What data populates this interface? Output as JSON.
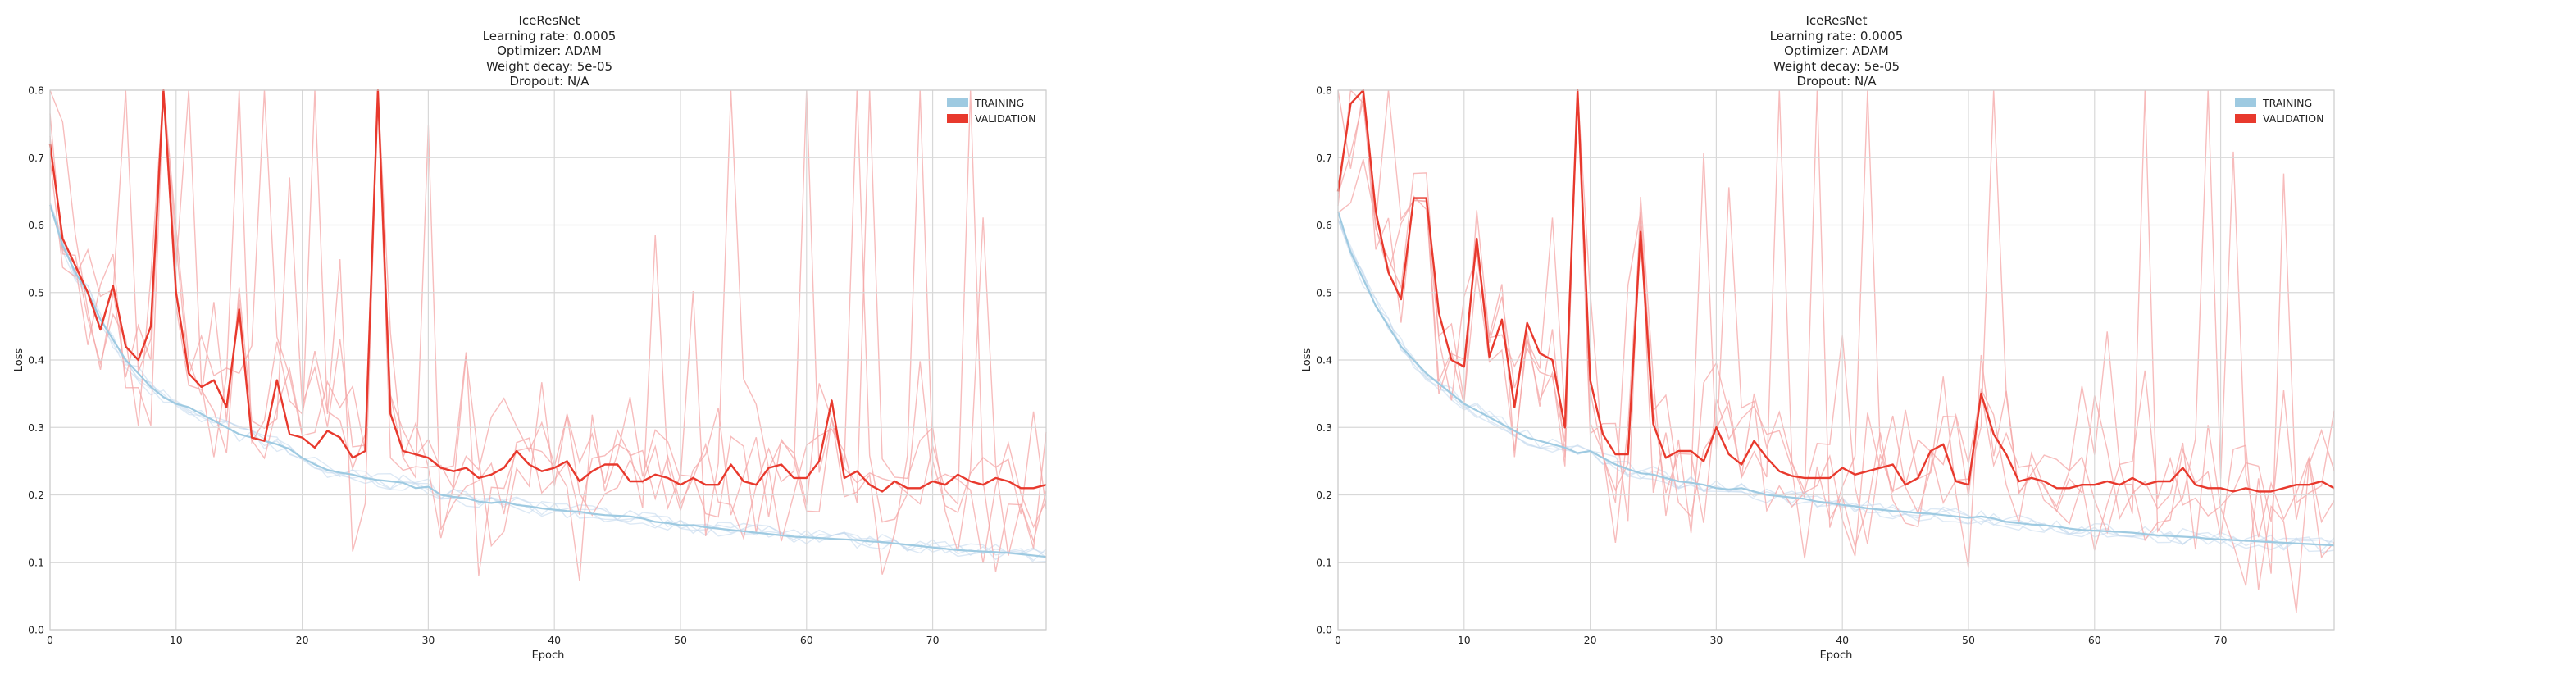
{
  "chart_data": [
    {
      "type": "line",
      "title_lines": [
        "IceResNet",
        "Learning rate: 0.0005",
        "Optimizer: ADAM",
        "Weight decay: 5e-05",
        "Dropout: N/A"
      ],
      "xlabel": "Epoch",
      "ylabel": "Loss",
      "xlim": [
        0,
        79
      ],
      "ylim": [
        0.0,
        0.8
      ],
      "xticks": [
        0,
        10,
        20,
        30,
        40,
        50,
        60,
        70
      ],
      "yticks": [
        0.0,
        0.1,
        0.2,
        0.3,
        0.4,
        0.5,
        0.6,
        0.7,
        0.8
      ],
      "grid": true,
      "legend_position": "top-right",
      "legend": [
        "TRAINING",
        "VALIDATION"
      ],
      "colors": {
        "training": "#9ecae1",
        "training_faint": "#c6dbef",
        "validation": "#e8392d",
        "validation_faint": "#f4a6a6"
      },
      "series": [
        {
          "name": "TRAINING",
          "x": [
            0,
            1,
            2,
            3,
            4,
            5,
            6,
            7,
            8,
            9,
            10,
            11,
            12,
            13,
            14,
            15,
            16,
            17,
            18,
            19,
            20,
            21,
            22,
            23,
            24,
            25,
            26,
            27,
            28,
            29,
            30,
            31,
            32,
            33,
            34,
            35,
            36,
            37,
            38,
            39,
            40,
            41,
            42,
            43,
            44,
            45,
            46,
            47,
            48,
            49,
            50,
            51,
            52,
            53,
            54,
            55,
            56,
            57,
            58,
            59,
            60,
            61,
            62,
            63,
            64,
            65,
            66,
            67,
            68,
            69,
            70,
            71,
            72,
            73,
            74,
            75,
            76,
            77,
            78,
            79
          ],
          "values": [
            0.63,
            0.57,
            0.53,
            0.5,
            0.46,
            0.43,
            0.4,
            0.38,
            0.36,
            0.345,
            0.335,
            0.33,
            0.32,
            0.31,
            0.3,
            0.29,
            0.285,
            0.28,
            0.275,
            0.268,
            0.255,
            0.245,
            0.237,
            0.233,
            0.23,
            0.225,
            0.222,
            0.22,
            0.218,
            0.21,
            0.212,
            0.2,
            0.197,
            0.195,
            0.19,
            0.188,
            0.19,
            0.185,
            0.183,
            0.18,
            0.178,
            0.176,
            0.175,
            0.172,
            0.17,
            0.169,
            0.168,
            0.165,
            0.16,
            0.158,
            0.155,
            0.155,
            0.152,
            0.15,
            0.148,
            0.146,
            0.144,
            0.142,
            0.14,
            0.138,
            0.137,
            0.136,
            0.135,
            0.134,
            0.133,
            0.131,
            0.13,
            0.128,
            0.126,
            0.124,
            0.122,
            0.12,
            0.118,
            0.117,
            0.116,
            0.115,
            0.114,
            0.112,
            0.11,
            0.108
          ]
        },
        {
          "name": "VALIDATION",
          "x": [
            0,
            1,
            2,
            3,
            4,
            5,
            6,
            7,
            8,
            9,
            10,
            11,
            12,
            13,
            14,
            15,
            16,
            17,
            18,
            19,
            20,
            21,
            22,
            23,
            24,
            25,
            26,
            27,
            28,
            29,
            30,
            31,
            32,
            33,
            34,
            35,
            36,
            37,
            38,
            39,
            40,
            41,
            42,
            43,
            44,
            45,
            46,
            47,
            48,
            49,
            50,
            51,
            52,
            53,
            54,
            55,
            56,
            57,
            58,
            59,
            60,
            61,
            62,
            63,
            64,
            65,
            66,
            67,
            68,
            69,
            70,
            71,
            72,
            73,
            74,
            75,
            76,
            77,
            78,
            79
          ],
          "values": [
            0.72,
            0.58,
            0.54,
            0.5,
            0.445,
            0.51,
            0.42,
            0.4,
            0.45,
            1.0,
            0.5,
            0.38,
            0.36,
            0.37,
            0.33,
            0.475,
            0.285,
            0.28,
            0.37,
            0.29,
            0.285,
            0.27,
            0.295,
            0.285,
            0.255,
            0.265,
            1.0,
            0.32,
            0.265,
            0.26,
            0.255,
            0.24,
            0.235,
            0.24,
            0.225,
            0.23,
            0.24,
            0.265,
            0.245,
            0.235,
            0.24,
            0.25,
            0.22,
            0.235,
            0.245,
            0.245,
            0.22,
            0.22,
            0.23,
            0.225,
            0.215,
            0.225,
            0.215,
            0.215,
            0.245,
            0.22,
            0.215,
            0.24,
            0.245,
            0.225,
            0.225,
            0.25,
            0.34,
            0.225,
            0.235,
            0.215,
            0.205,
            0.22,
            0.21,
            0.21,
            0.22,
            0.215,
            0.23,
            0.22,
            0.215,
            0.225,
            0.22,
            0.21,
            0.21,
            0.215
          ]
        }
      ]
    },
    {
      "type": "line",
      "title_lines": [
        "IceResNet",
        "Learning rate: 0.0005",
        "Optimizer: ADAM",
        "Weight decay: 5e-05",
        "Dropout: N/A"
      ],
      "xlabel": "Epoch",
      "ylabel": "Loss",
      "xlim": [
        0,
        79
      ],
      "ylim": [
        0.0,
        0.8
      ],
      "xticks": [
        0,
        10,
        20,
        30,
        40,
        50,
        60,
        70
      ],
      "yticks": [
        0.0,
        0.1,
        0.2,
        0.3,
        0.4,
        0.5,
        0.6,
        0.7,
        0.8
      ],
      "grid": true,
      "legend_position": "top-right",
      "legend": [
        "TRAINING",
        "VALIDATION"
      ],
      "colors": {
        "training": "#9ecae1",
        "training_faint": "#c6dbef",
        "validation": "#e8392d",
        "validation_faint": "#f4a6a6"
      },
      "series": [
        {
          "name": "TRAINING",
          "x": [
            0,
            1,
            2,
            3,
            4,
            5,
            6,
            7,
            8,
            9,
            10,
            11,
            12,
            13,
            14,
            15,
            16,
            17,
            18,
            19,
            20,
            21,
            22,
            23,
            24,
            25,
            26,
            27,
            28,
            29,
            30,
            31,
            32,
            33,
            34,
            35,
            36,
            37,
            38,
            39,
            40,
            41,
            42,
            43,
            44,
            45,
            46,
            47,
            48,
            49,
            50,
            51,
            52,
            53,
            54,
            55,
            56,
            57,
            58,
            59,
            60,
            61,
            62,
            63,
            64,
            65,
            66,
            67,
            68,
            69,
            70,
            71,
            72,
            73,
            74,
            75,
            76,
            77,
            78,
            79
          ],
          "values": [
            0.62,
            0.56,
            0.52,
            0.48,
            0.45,
            0.42,
            0.4,
            0.38,
            0.365,
            0.35,
            0.335,
            0.325,
            0.315,
            0.305,
            0.295,
            0.285,
            0.28,
            0.275,
            0.27,
            0.262,
            0.265,
            0.255,
            0.245,
            0.238,
            0.232,
            0.23,
            0.225,
            0.22,
            0.218,
            0.215,
            0.21,
            0.208,
            0.21,
            0.205,
            0.2,
            0.198,
            0.196,
            0.194,
            0.19,
            0.188,
            0.185,
            0.183,
            0.18,
            0.178,
            0.176,
            0.175,
            0.173,
            0.172,
            0.17,
            0.168,
            0.166,
            0.168,
            0.165,
            0.16,
            0.158,
            0.156,
            0.155,
            0.153,
            0.15,
            0.148,
            0.147,
            0.146,
            0.145,
            0.144,
            0.142,
            0.14,
            0.139,
            0.138,
            0.137,
            0.135,
            0.134,
            0.133,
            0.132,
            0.131,
            0.13,
            0.129,
            0.128,
            0.127,
            0.126,
            0.125
          ]
        },
        {
          "name": "VALIDATION",
          "x": [
            0,
            1,
            2,
            3,
            4,
            5,
            6,
            7,
            8,
            9,
            10,
            11,
            12,
            13,
            14,
            15,
            16,
            17,
            18,
            19,
            20,
            21,
            22,
            23,
            24,
            25,
            26,
            27,
            28,
            29,
            30,
            31,
            32,
            33,
            34,
            35,
            36,
            37,
            38,
            39,
            40,
            41,
            42,
            43,
            44,
            45,
            46,
            47,
            48,
            49,
            50,
            51,
            52,
            53,
            54,
            55,
            56,
            57,
            58,
            59,
            60,
            61,
            62,
            63,
            64,
            65,
            66,
            67,
            68,
            69,
            70,
            71,
            72,
            73,
            74,
            75,
            76,
            77,
            78,
            79
          ],
          "values": [
            0.65,
            0.78,
            0.8,
            0.62,
            0.53,
            0.49,
            0.64,
            0.64,
            0.47,
            0.4,
            0.39,
            0.58,
            0.405,
            0.46,
            0.33,
            0.455,
            0.41,
            0.4,
            0.3,
            1.0,
            0.37,
            0.29,
            0.26,
            0.26,
            0.59,
            0.305,
            0.255,
            0.265,
            0.265,
            0.25,
            0.3,
            0.26,
            0.245,
            0.28,
            0.255,
            0.235,
            0.228,
            0.225,
            0.225,
            0.225,
            0.24,
            0.23,
            0.235,
            0.24,
            0.245,
            0.215,
            0.225,
            0.265,
            0.275,
            0.22,
            0.215,
            0.35,
            0.29,
            0.26,
            0.22,
            0.225,
            0.22,
            0.21,
            0.21,
            0.215,
            0.215,
            0.22,
            0.215,
            0.225,
            0.215,
            0.22,
            0.22,
            0.24,
            0.215,
            0.21,
            0.21,
            0.205,
            0.21,
            0.205,
            0.205,
            0.21,
            0.215,
            0.215,
            0.22,
            0.21
          ]
        }
      ]
    }
  ]
}
